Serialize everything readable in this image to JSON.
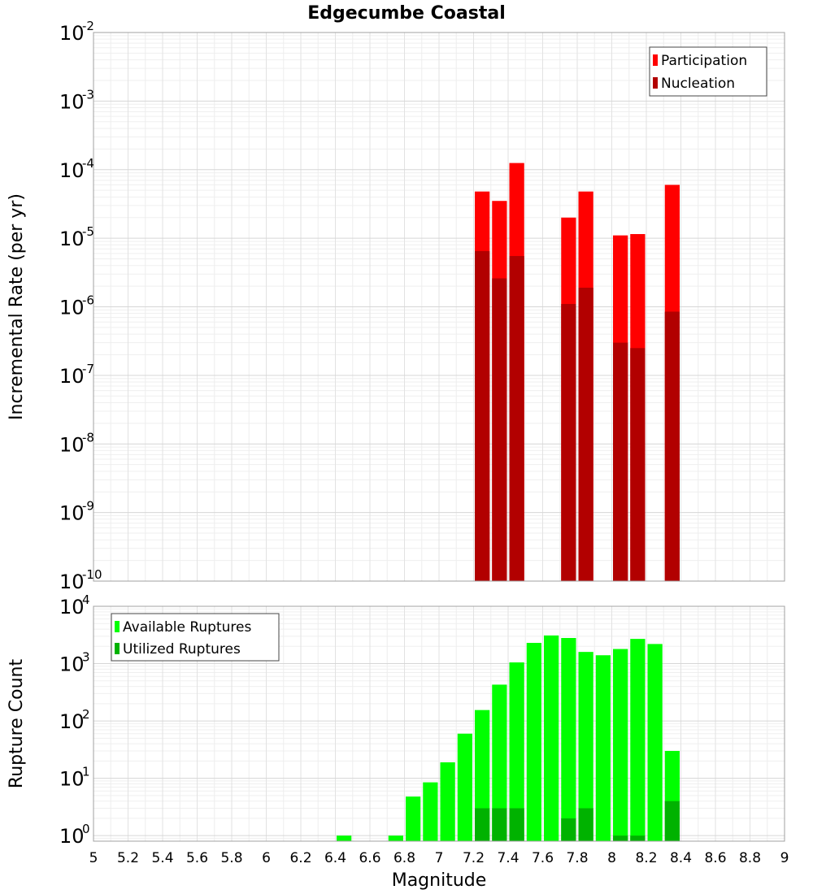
{
  "title": "Edgecumbe Coastal",
  "chart_data": [
    {
      "type": "bar",
      "name": "rate-panel",
      "yscale": "log",
      "ylabel": "Incremental Rate (per yr)",
      "ylim_exp": [
        -10,
        -2
      ],
      "ytick_exponents": [
        "-10",
        "-9",
        "-8",
        "-7",
        "-6",
        "-5",
        "-4",
        "-3",
        "-2"
      ],
      "ytick_base": "10",
      "legend_position": "top-right",
      "series": [
        {
          "name": "Participation",
          "color": "#ff0000",
          "points": [
            [
              7.25,
              4.8e-05
            ],
            [
              7.35,
              3.5e-05
            ],
            [
              7.45,
              0.000125
            ],
            [
              7.75,
              2e-05
            ],
            [
              7.85,
              4.8e-05
            ],
            [
              8.05,
              1.1e-05
            ],
            [
              8.15,
              1.15e-05
            ],
            [
              8.35,
              6e-05
            ]
          ]
        },
        {
          "name": "Nucleation",
          "color": "#b20000",
          "points": [
            [
              7.25,
              6.5e-06
            ],
            [
              7.35,
              2.6e-06
            ],
            [
              7.45,
              5.5e-06
            ],
            [
              7.75,
              1.1e-06
            ],
            [
              7.85,
              1.9e-06
            ],
            [
              8.05,
              3e-07
            ],
            [
              8.15,
              2.5e-07
            ],
            [
              8.35,
              8.5e-07
            ]
          ]
        }
      ]
    },
    {
      "type": "bar",
      "name": "count-panel",
      "yscale": "log",
      "ylabel": "Rupture Count",
      "xlabel": "Magnitude",
      "ylim": [
        0.8,
        10000
      ],
      "ytick_exponents": [
        "0",
        "1",
        "2",
        "3",
        "4"
      ],
      "ytick_base": "10",
      "legend_position": "top-left",
      "xlim": [
        5,
        9
      ],
      "xticks": [
        "5",
        "5.2",
        "5.4",
        "5.6",
        "5.8",
        "6",
        "6.2",
        "6.4",
        "6.6",
        "6.8",
        "7",
        "7.2",
        "7.4",
        "7.6",
        "7.8",
        "8",
        "8.2",
        "8.4",
        "8.6",
        "8.8",
        "9"
      ],
      "series": [
        {
          "name": "Available Ruptures",
          "color": "#00ff00",
          "points": [
            [
              6.45,
              1
            ],
            [
              6.75,
              1
            ],
            [
              6.85,
              4.8
            ],
            [
              6.95,
              8.5
            ],
            [
              7.05,
              19
            ],
            [
              7.15,
              60
            ],
            [
              7.25,
              155
            ],
            [
              7.35,
              430
            ],
            [
              7.45,
              1050
            ],
            [
              7.55,
              2300
            ],
            [
              7.65,
              3100
            ],
            [
              7.75,
              2800
            ],
            [
              7.85,
              1600
            ],
            [
              7.95,
              1400
            ],
            [
              8.05,
              1800
            ],
            [
              8.15,
              2700
            ],
            [
              8.25,
              2200
            ],
            [
              8.35,
              30
            ]
          ]
        },
        {
          "name": "Utilized Ruptures",
          "color": "#00b200",
          "points": [
            [
              7.25,
              3
            ],
            [
              7.35,
              3
            ],
            [
              7.45,
              3
            ],
            [
              7.75,
              2
            ],
            [
              7.85,
              3
            ],
            [
              8.05,
              1
            ],
            [
              8.15,
              1
            ],
            [
              8.35,
              4
            ]
          ]
        }
      ]
    }
  ]
}
